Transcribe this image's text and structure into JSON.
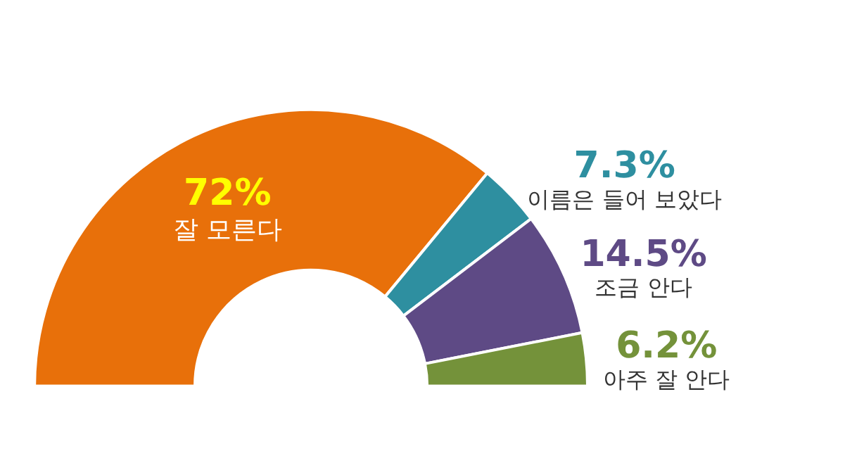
{
  "chart_data": {
    "type": "donut",
    "categories": [
      "잘 모른다",
      "이름은 들어 보았다",
      "조금 안다",
      "아주 잘 안다"
    ],
    "values": [
      72,
      7.3,
      14.5,
      6.2
    ],
    "value_labels": [
      "72%",
      "7.3%",
      "14.5%",
      "6.2%"
    ],
    "colors": [
      "#e8700a",
      "#2e8fa0",
      "#5e4a85",
      "#74923a"
    ]
  }
}
